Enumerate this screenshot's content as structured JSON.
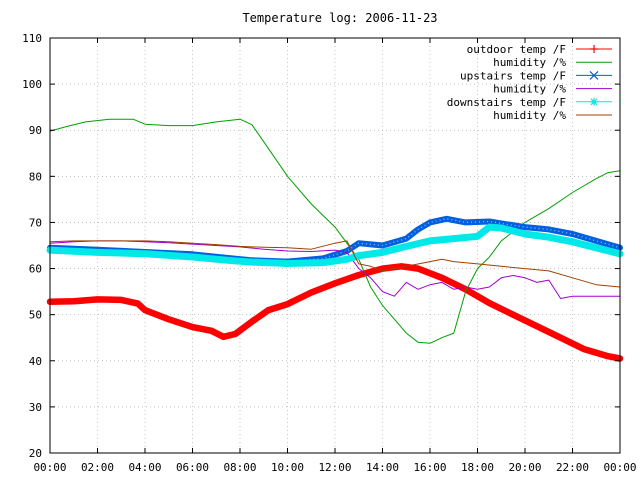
{
  "chart_data": {
    "type": "line",
    "title": "Temperature log: 2006-11-23",
    "xlabel": "",
    "ylabel": "",
    "xlim": [
      0,
      24
    ],
    "ylim": [
      20,
      110
    ],
    "xticks": [
      {
        "v": 0,
        "label": "00:00"
      },
      {
        "v": 2,
        "label": "02:00"
      },
      {
        "v": 4,
        "label": "04:00"
      },
      {
        "v": 6,
        "label": "06:00"
      },
      {
        "v": 8,
        "label": "08:00"
      },
      {
        "v": 10,
        "label": "10:00"
      },
      {
        "v": 12,
        "label": "12:00"
      },
      {
        "v": 14,
        "label": "14:00"
      },
      {
        "v": 16,
        "label": "16:00"
      },
      {
        "v": 18,
        "label": "18:00"
      },
      {
        "v": 20,
        "label": "20:00"
      },
      {
        "v": 22,
        "label": "22:00"
      },
      {
        "v": 24,
        "label": "00:00"
      }
    ],
    "yticks": [
      20,
      30,
      40,
      50,
      60,
      70,
      80,
      90,
      100,
      110
    ],
    "grid": true,
    "legend_position": "top-right",
    "series": [
      {
        "name": "outdoor temp /F",
        "color": "#ff0000",
        "marker": "plus",
        "x": [
          0,
          1,
          2,
          3,
          3.7,
          4,
          5,
          6,
          6.8,
          7.3,
          7.8,
          8.5,
          9.2,
          10,
          11,
          12,
          13,
          14,
          14.8,
          15.5,
          16.5,
          17.5,
          18.5,
          19.5,
          20.5,
          21.5,
          22.5,
          23.5,
          24
        ],
        "y": [
          52.8,
          52.9,
          53.3,
          53.2,
          52.4,
          51,
          49,
          47.3,
          46.5,
          45.2,
          45.8,
          48.5,
          51,
          52.3,
          54.8,
          56.8,
          58.6,
          60,
          60.5,
          60,
          58,
          55.5,
          52.5,
          50,
          47.5,
          45,
          42.5,
          41,
          40.5
        ]
      },
      {
        "name": "humidity /%",
        "color": "#00a000",
        "marker": "none",
        "x": [
          0,
          0.7,
          1.5,
          2.5,
          3.5,
          4,
          5,
          6,
          7,
          8,
          8.5,
          9,
          10,
          11,
          12,
          13,
          13.5,
          14,
          15,
          15.5,
          16,
          16.5,
          17,
          17.5,
          18,
          18.5,
          19,
          20,
          21,
          22,
          23,
          23.5,
          24
        ],
        "y": [
          89.8,
          90.8,
          91.8,
          92.4,
          92.4,
          91.3,
          91,
          91,
          91.8,
          92.4,
          91.2,
          87.5,
          80,
          74,
          69,
          62,
          56,
          52,
          46,
          44,
          43.8,
          45,
          46,
          55,
          60,
          62.5,
          66,
          70,
          73,
          76.5,
          79.5,
          80.8,
          81.2
        ]
      },
      {
        "name": "upstairs temp /F",
        "color": "#0060e0",
        "marker": "cross",
        "x": [
          0,
          2,
          4,
          6,
          7.5,
          8.5,
          10,
          11.5,
          12.5,
          13,
          14,
          15,
          15.5,
          16,
          16.7,
          17.5,
          18.5,
          19,
          20,
          21,
          22,
          23,
          24
        ],
        "y": [
          64.5,
          64.1,
          63.6,
          63.1,
          62.3,
          61.8,
          61.5,
          62.2,
          63.8,
          65.5,
          65,
          66.5,
          68.5,
          70,
          70.8,
          70,
          70.2,
          69.8,
          69,
          68.5,
          67.5,
          66,
          64.5
        ]
      },
      {
        "name": "humidity /%",
        "color": "#a000d0",
        "marker": "none",
        "x": [
          0,
          1,
          2,
          3,
          4,
          5,
          6,
          7,
          8,
          9,
          10,
          11,
          12,
          12.5,
          13,
          13.5,
          14,
          14.5,
          15,
          15.5,
          16,
          16.5,
          17,
          17.5,
          18,
          18.5,
          19,
          19.5,
          20,
          20.5,
          21,
          21.5,
          22,
          23,
          24
        ],
        "y": [
          65.5,
          65.8,
          66,
          66,
          65.8,
          65.6,
          65.3,
          65,
          64.7,
          64.2,
          63.8,
          63.7,
          64,
          63.5,
          60,
          58,
          55,
          54,
          57,
          55.5,
          56.5,
          57,
          55.5,
          56,
          55.5,
          56,
          58,
          58.5,
          58,
          57,
          57.5,
          53.5,
          54,
          54,
          54
        ]
      },
      {
        "name": "downstairs temp /F",
        "color": "#00e8e8",
        "marker": "star",
        "x": [
          0,
          2,
          4,
          6,
          7.5,
          8.5,
          10,
          11.5,
          12.5,
          13,
          14,
          15,
          16,
          17,
          18,
          18.5,
          19,
          20,
          21,
          22,
          23,
          24
        ],
        "y": [
          64,
          63.5,
          63.2,
          62.5,
          61.8,
          61.4,
          61.1,
          61.3,
          62,
          62.8,
          63.5,
          64.8,
          66,
          66.5,
          67,
          69,
          68.8,
          67.5,
          66.8,
          65.8,
          64.5,
          63.2
        ]
      },
      {
        "name": "humidity /%",
        "color": "#a04000",
        "marker": "none",
        "x": [
          0,
          1,
          2,
          3,
          4,
          5,
          6,
          7,
          8,
          9,
          10,
          11,
          12,
          12.5,
          13,
          13.5,
          14,
          15,
          16,
          16.5,
          17,
          18,
          19,
          20,
          21,
          22,
          23,
          24
        ],
        "y": [
          65.8,
          66,
          66,
          66,
          66,
          65.8,
          65.5,
          65.2,
          64.8,
          64.6,
          64.5,
          64.2,
          65.5,
          66,
          61,
          60.5,
          59.5,
          60.5,
          61.5,
          62,
          61.5,
          61,
          60.5,
          60,
          59.5,
          58,
          56.5,
          56
        ]
      }
    ]
  }
}
